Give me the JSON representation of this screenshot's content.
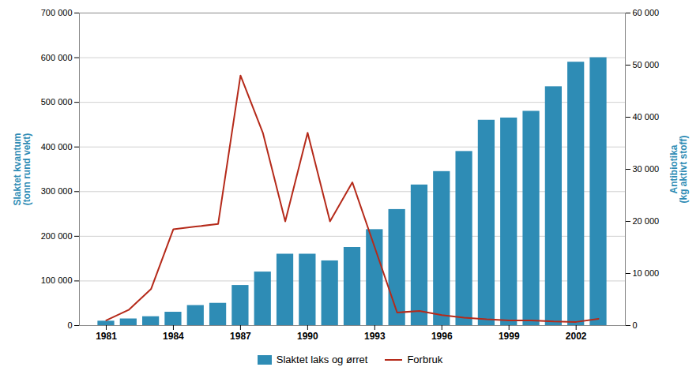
{
  "chart_data": {
    "type": "bar",
    "x": [
      1981,
      1982,
      1983,
      1984,
      1985,
      1986,
      1987,
      1988,
      1989,
      1990,
      1991,
      1992,
      1993,
      1994,
      1995,
      1996,
      1997,
      1998,
      1999,
      2000,
      2001,
      2002,
      2003
    ],
    "series": [
      {
        "name": "Slaktet laks og ørret",
        "type": "bar",
        "color": "#2e8cb5",
        "values": [
          10000,
          15000,
          20000,
          30000,
          45000,
          50000,
          90000,
          120000,
          160000,
          160000,
          145000,
          175000,
          215000,
          260000,
          315000,
          345000,
          390000,
          460000,
          465000,
          480000,
          535000,
          590000,
          600000
        ]
      },
      {
        "name": "Forbruk",
        "type": "line",
        "color": "#b52a1a",
        "axis": "y2",
        "values": [
          1000,
          3000,
          7000,
          18500,
          19000,
          19500,
          48000,
          37000,
          20000,
          37000,
          20000,
          27500,
          15000,
          2500,
          2800,
          2000,
          1500,
          1200,
          1000,
          1000,
          800,
          700,
          1300
        ]
      }
    ],
    "ylabel": "Slaktet kvantum\n(tonn rund vekt)",
    "y2label": "Antibiotika\n(kg aktivt stoff)",
    "xlim": [
      1979.8,
      2004.2
    ],
    "xticks": [
      1981,
      1984,
      1987,
      1990,
      1993,
      1996,
      1999,
      2002
    ],
    "ylim": [
      0,
      700000
    ],
    "yticks": [
      0,
      {
        "value": 100000,
        "label": "100 000"
      },
      {
        "value": 200000,
        "label": "200 000"
      },
      {
        "value": 300000,
        "label": "300 000"
      },
      {
        "value": 400000,
        "label": "400 000"
      },
      {
        "value": 500000,
        "label": "500 000"
      },
      {
        "value": 600000,
        "label": "600 000"
      },
      {
        "value": 700000,
        "label": "700 000"
      }
    ],
    "y2lim": [
      0,
      60000
    ],
    "y2ticks": [
      0,
      {
        "value": 10000,
        "label": "10 000"
      },
      {
        "value": 20000,
        "label": "20 000"
      },
      {
        "value": 30000,
        "label": "30 000"
      },
      {
        "value": 40000,
        "label": "40 000"
      },
      {
        "value": 50000,
        "label": "50 000"
      },
      {
        "value": 60000,
        "label": "60 000"
      }
    ],
    "grid": true,
    "legend": "bottom"
  }
}
